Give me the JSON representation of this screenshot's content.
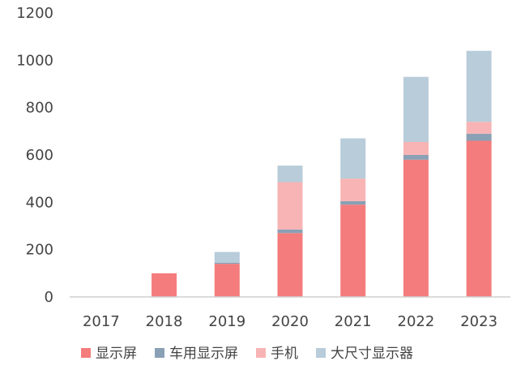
{
  "chart_data": {
    "type": "bar",
    "stacked": true,
    "categories": [
      "2017",
      "2018",
      "2019",
      "2020",
      "2021",
      "2022",
      "2023"
    ],
    "series": [
      {
        "name": "显示屏",
        "color": "#f47c7c",
        "values": [
          0,
          100,
          140,
          270,
          390,
          580,
          660
        ]
      },
      {
        "name": "车用显示屏",
        "color": "#8aa0b4",
        "values": [
          0,
          0,
          5,
          15,
          15,
          20,
          30
        ]
      },
      {
        "name": "手机",
        "color": "#f8b4b4",
        "values": [
          0,
          0,
          0,
          200,
          95,
          55,
          50
        ]
      },
      {
        "name": "大尺寸显示器",
        "color": "#b8ccda",
        "values": [
          0,
          0,
          45,
          70,
          170,
          275,
          300
        ]
      }
    ],
    "ylim": [
      0,
      1200
    ],
    "yticks": [
      0,
      200,
      400,
      600,
      800,
      1000,
      1200
    ],
    "ytick_labels": [
      "0",
      "200",
      "400",
      "600",
      "800",
      "1000",
      "1200"
    ],
    "grid": false,
    "legend_position": "bottom"
  }
}
